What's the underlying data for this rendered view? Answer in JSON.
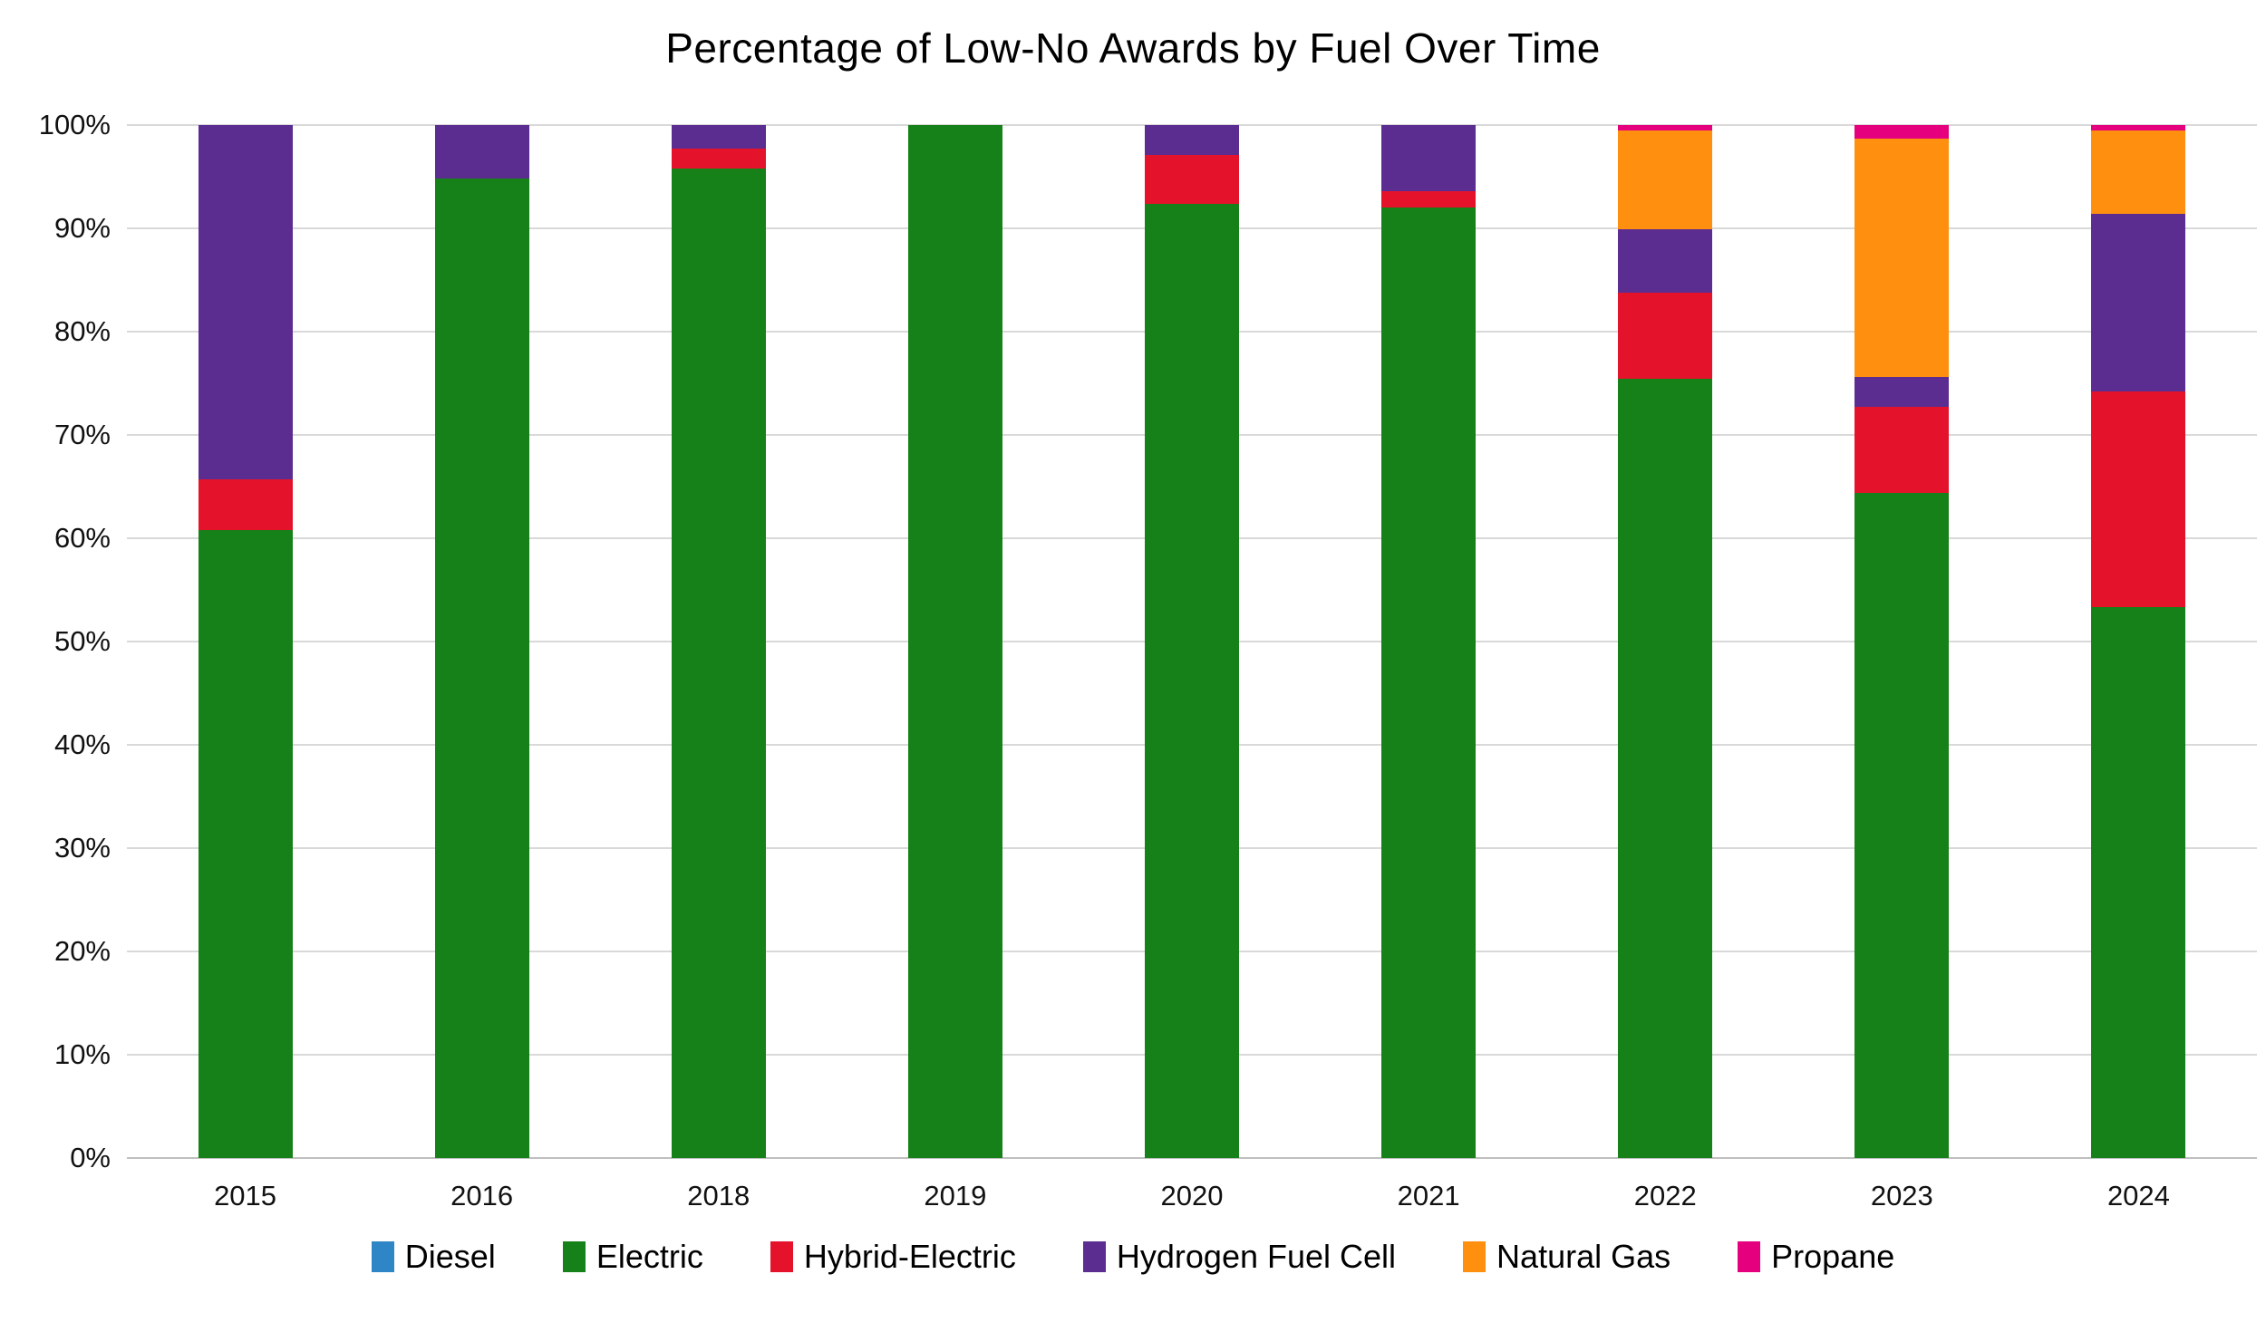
{
  "chart_data": {
    "type": "bar",
    "stacked": true,
    "title": "Percentage of Low-No Awards by Fuel Over Time",
    "categories": [
      "2015",
      "2016",
      "2018",
      "2019",
      "2020",
      "2021",
      "2022",
      "2023",
      "2024"
    ],
    "series": [
      {
        "name": "Diesel",
        "color": "#2E86C6",
        "values": [
          0,
          0,
          0,
          0,
          0,
          0,
          0,
          0,
          0
        ]
      },
      {
        "name": "Electric",
        "color": "#168118",
        "values": [
          60.8,
          94.8,
          95.8,
          100,
          92.4,
          92.0,
          75.4,
          64.4,
          53.3
        ]
      },
      {
        "name": "Hybrid-Electric",
        "color": "#E4132B",
        "values": [
          4.9,
          0,
          1.9,
          0,
          4.7,
          1.6,
          8.4,
          8.3,
          20.9
        ]
      },
      {
        "name": "Hydrogen Fuel Cell",
        "color": "#5B2D90",
        "values": [
          34.3,
          5.2,
          2.3,
          0,
          2.9,
          6.4,
          6.1,
          2.9,
          17.2
        ]
      },
      {
        "name": "Natural Gas",
        "color": "#FF8F0E",
        "values": [
          0,
          0,
          0,
          0,
          0,
          0,
          9.6,
          23.1,
          8.1
        ]
      },
      {
        "name": "Propane",
        "color": "#E5007D",
        "values": [
          0,
          0,
          0,
          0,
          0,
          0,
          0.5,
          1.3,
          0.5
        ]
      }
    ],
    "xlabel": "",
    "ylabel": "",
    "ylim": [
      0,
      100
    ],
    "yticks": [
      "0%",
      "10%",
      "20%",
      "30%",
      "40%",
      "50%",
      "60%",
      "70%",
      "80%",
      "90%",
      "100%"
    ],
    "grid": true,
    "legend_position": "bottom",
    "gridline_color": "#D9D9D9",
    "axis_line_color": "#BFBFBF",
    "background_color": "#FFFFFF"
  }
}
